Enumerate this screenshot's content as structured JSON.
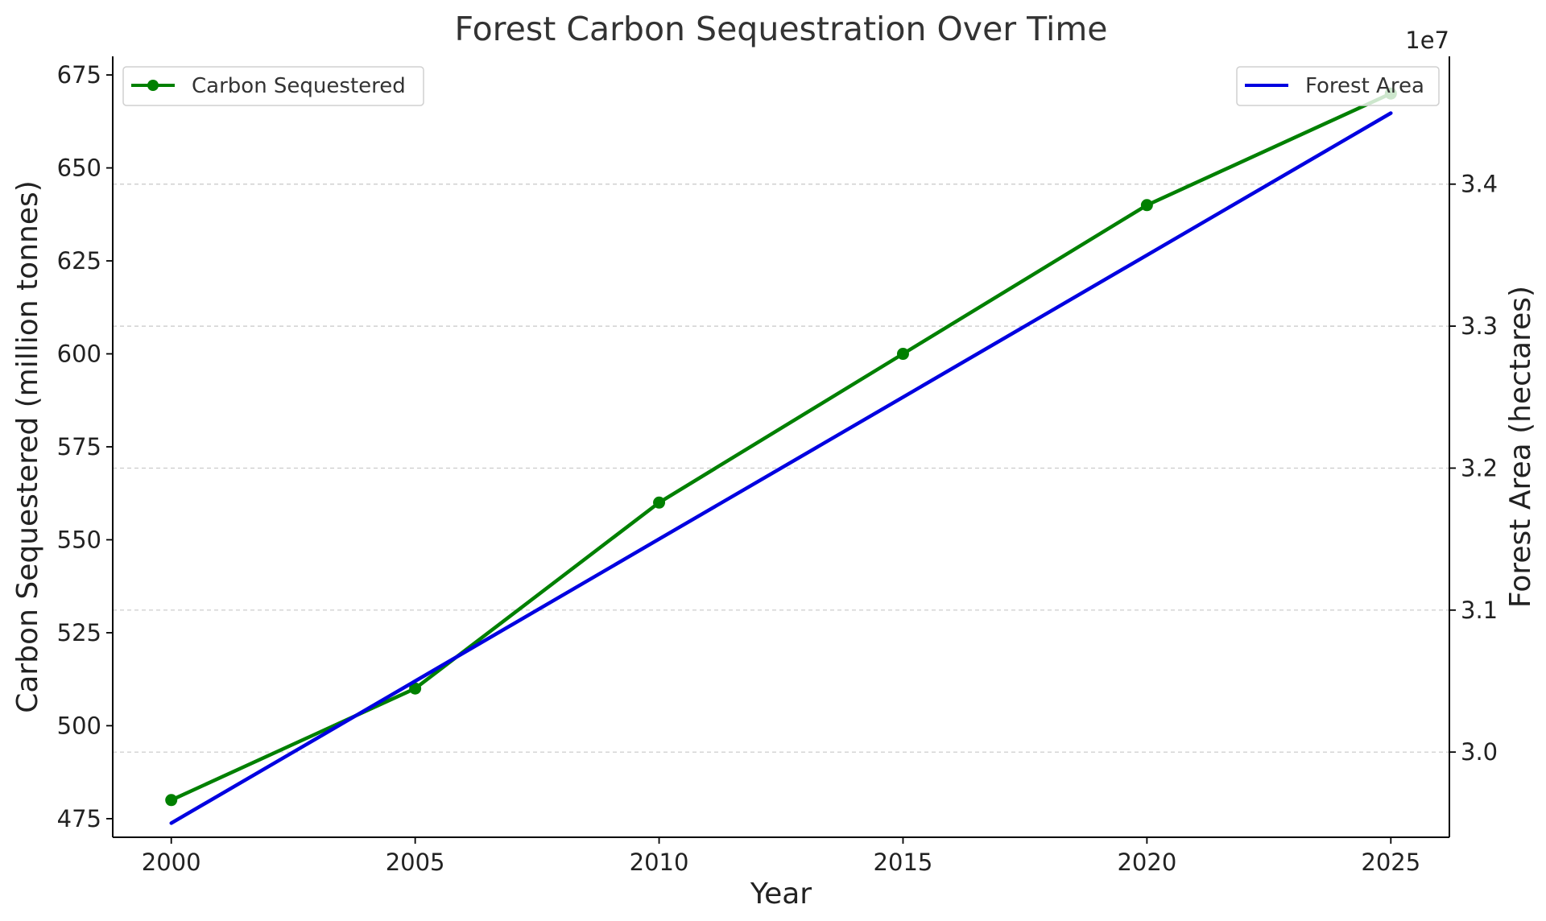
{
  "chart_data": {
    "type": "line",
    "title": "Forest Carbon Sequestration Over Time",
    "xlabel": "Year",
    "ylabel_left": "Carbon Sequestered (million tonnes)",
    "ylabel_right": "Forest Area (hectares)",
    "right_axis_offset_label": "1e7",
    "x": [
      2000,
      2005,
      2010,
      2015,
      2020,
      2025
    ],
    "xlim": [
      1998.8,
      2026.2
    ],
    "x_ticks": [
      "2000",
      "2005",
      "2010",
      "2015",
      "2020",
      "2025"
    ],
    "ylim_left": [
      470,
      680
    ],
    "y_ticks_left": [
      "475",
      "500",
      "525",
      "550",
      "575",
      "600",
      "625",
      "650",
      "675"
    ],
    "ylim_right": [
      29400000,
      34900000
    ],
    "y_ticks_right": [
      "3.0",
      "3.1",
      "3.2",
      "3.3",
      "3.4"
    ],
    "y_ticks_right_values": [
      30000000,
      31000000,
      32000000,
      33000000,
      34000000
    ],
    "grid": "horizontal-dashed",
    "series": [
      {
        "name": "Carbon Sequestered",
        "axis": "left",
        "color": "#008000",
        "marker": "circle",
        "values": [
          480,
          510,
          560,
          600,
          640,
          670
        ]
      },
      {
        "name": "Forest Area",
        "axis": "right",
        "color": "#0000e0",
        "marker": "none",
        "values": [
          29500000,
          30500000,
          31500000,
          32500000,
          33500000,
          34500000
        ]
      }
    ],
    "legends": [
      {
        "position": "top-left",
        "entries": [
          "Carbon Sequestered"
        ]
      },
      {
        "position": "top-right",
        "entries": [
          "Forest Area"
        ]
      }
    ]
  }
}
